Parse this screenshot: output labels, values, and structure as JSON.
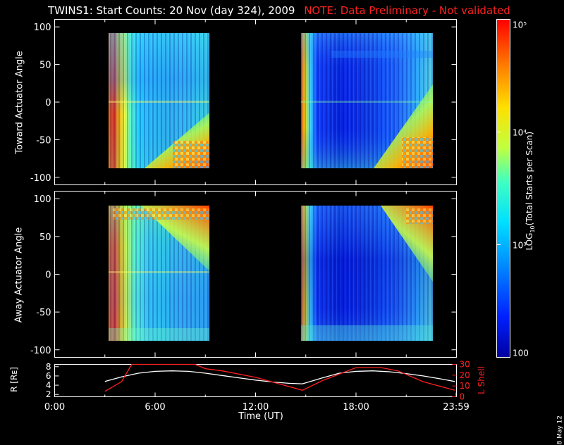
{
  "title": "TWINS1: Start Counts: 20 Nov (day 324), 2009",
  "note": "NOTE: Data Preliminary - Not validated",
  "stamp": "8 May 12",
  "colors": {
    "note": "#ff2020",
    "orbit_r": "#ffffff",
    "orbit_l": "#ff2020"
  },
  "chart_data": [
    {
      "type": "heatmap",
      "panel": "toward",
      "ylabel": "Toward Actuator Angle",
      "ylim": [
        -110,
        110
      ],
      "yticks": [
        100,
        50,
        0,
        -50,
        -100
      ],
      "xlim": [
        0,
        24
      ],
      "coverage_hours": [
        [
          3.0,
          9.0
        ],
        [
          14.5,
          22.8
        ]
      ],
      "angle_range": [
        -88,
        90
      ],
      "colorscale": "rainbow (blue=low, red=high)"
    },
    {
      "type": "heatmap",
      "panel": "away",
      "ylabel": "Away Actuator Angle",
      "ylim": [
        -110,
        110
      ],
      "yticks": [
        100,
        50,
        0,
        -50,
        -100
      ],
      "xlim": [
        0,
        24
      ],
      "coverage_hours": [
        [
          3.0,
          9.0
        ],
        [
          14.5,
          22.8
        ]
      ],
      "angle_range": [
        -88,
        90
      ],
      "colorscale": "rainbow (blue=low, red=high)"
    },
    {
      "type": "colorbar",
      "label": "LOG",
      "label_sub": "10",
      "label_rest": "(Total Starts per Scan)",
      "scale": "log",
      "range": [
        100,
        100000
      ],
      "tick_labels": [
        "10⁵",
        "10⁴",
        "10³",
        "100"
      ],
      "tick_values": [
        100000,
        10000,
        1000,
        100
      ]
    },
    {
      "type": "line",
      "panel": "orbit",
      "ylabel_left": "R [Rᴇ]",
      "ylabel_right": "L Shell",
      "xlabel": "Time (UT)",
      "x_tick_labels": [
        "0:00",
        "6:00",
        "12:00",
        "18:00",
        "23:59"
      ],
      "x_tick_values": [
        0,
        6,
        12,
        18,
        23.98
      ],
      "y_left_ticks": [
        8,
        6,
        4,
        2
      ],
      "y_left_range": [
        1.5,
        8.5
      ],
      "y_right_ticks": [
        30,
        20,
        10,
        0
      ],
      "y_right_range": [
        0,
        30
      ],
      "series": [
        {
          "name": "R",
          "axis": "left",
          "x": [
            3.0,
            4.0,
            5.0,
            6.0,
            7.0,
            8.0,
            9.0,
            10.0,
            11.0,
            12.0,
            13.0,
            14.0,
            14.8,
            16.0,
            17.0,
            18.0,
            19.0,
            20.0,
            21.0,
            22.0,
            23.0,
            23.9
          ],
          "y": [
            4.8,
            5.8,
            6.6,
            7.0,
            7.1,
            7.0,
            6.6,
            6.1,
            5.6,
            5.1,
            4.7,
            4.4,
            4.3,
            5.6,
            6.6,
            7.0,
            7.1,
            6.9,
            6.5,
            6.0,
            5.4,
            4.8
          ]
        },
        {
          "name": "L Shell",
          "axis": "right",
          "x": [
            3.0,
            4.0,
            4.6,
            8.4,
            9.0,
            10.0,
            12.0,
            14.8,
            16.0,
            18.0,
            19.5,
            20.5,
            22.0,
            23.9
          ],
          "y": [
            5,
            14,
            30,
            30,
            26,
            24,
            18,
            6,
            15,
            27,
            27,
            24,
            14,
            6
          ]
        }
      ]
    }
  ]
}
